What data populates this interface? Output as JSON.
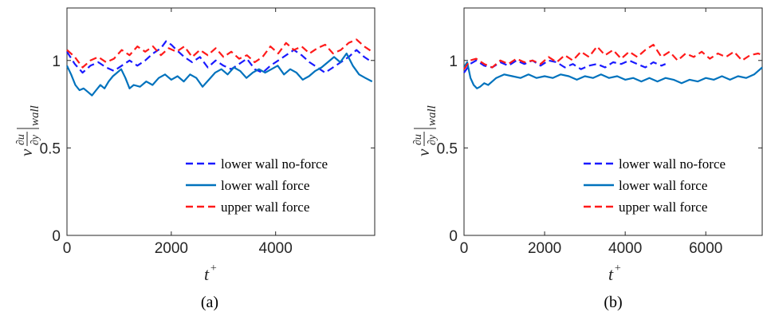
{
  "colors": {
    "no_force": "#1a1aff",
    "lower_force": "#0072bd",
    "upper_force": "#ff1a1a",
    "axis": "#262626"
  },
  "chart_data": [
    {
      "type": "line",
      "panel": "(a)",
      "xlabel": "t+",
      "ylabel": "ν ∂u/∂y |wall",
      "xlim": [
        0,
        5900
      ],
      "ylim": [
        0,
        1.3
      ],
      "xticks": [
        "0",
        "2000",
        "4000"
      ],
      "yticks": [
        "0",
        "0.5",
        "1"
      ],
      "legend_position": "bottom-right",
      "grid": false,
      "series": [
        {
          "name": "lower wall no-force",
          "style": "dashed",
          "color": "#1a1aff",
          "x": [
            0,
            150,
            300,
            450,
            600,
            750,
            900,
            1050,
            1200,
            1350,
            1500,
            1650,
            1800,
            1900,
            2000,
            2100,
            2250,
            2400,
            2550,
            2700,
            2850,
            3000,
            3150,
            3300,
            3450,
            3600,
            3750,
            3900,
            4050,
            4200,
            4350,
            4500,
            4650,
            4800,
            4950,
            5100,
            5250,
            5400,
            5550,
            5700,
            5850
          ],
          "y": [
            1.05,
            0.98,
            0.93,
            0.97,
            0.99,
            0.96,
            0.94,
            0.97,
            1.0,
            0.97,
            1.0,
            1.04,
            1.07,
            1.11,
            1.09,
            1.06,
            1.02,
            0.99,
            1.02,
            0.96,
            1.0,
            0.97,
            0.95,
            0.98,
            1.01,
            0.95,
            0.93,
            0.97,
            1.0,
            1.03,
            1.06,
            1.03,
            0.99,
            0.96,
            0.93,
            0.96,
            0.99,
            1.02,
            1.06,
            1.02,
            0.99
          ]
        },
        {
          "name": "lower wall force",
          "style": "solid",
          "color": "#0072bd",
          "x": [
            0,
            80,
            160,
            240,
            320,
            400,
            480,
            560,
            640,
            720,
            800,
            880,
            960,
            1040,
            1120,
            1200,
            1280,
            1400,
            1520,
            1640,
            1760,
            1880,
            2000,
            2120,
            2240,
            2360,
            2480,
            2600,
            2720,
            2840,
            2960,
            3080,
            3200,
            3320,
            3440,
            3560,
            3680,
            3800,
            3920,
            4040,
            4160,
            4280,
            4400,
            4520,
            4640,
            4760,
            4880,
            5000,
            5120,
            5240,
            5360,
            5480,
            5600,
            5720,
            5850
          ],
          "y": [
            0.97,
            0.92,
            0.86,
            0.83,
            0.84,
            0.82,
            0.8,
            0.83,
            0.86,
            0.84,
            0.88,
            0.91,
            0.93,
            0.95,
            0.9,
            0.84,
            0.86,
            0.85,
            0.88,
            0.86,
            0.9,
            0.92,
            0.89,
            0.91,
            0.88,
            0.92,
            0.9,
            0.85,
            0.89,
            0.93,
            0.95,
            0.92,
            0.96,
            0.94,
            0.9,
            0.93,
            0.95,
            0.93,
            0.95,
            0.97,
            0.92,
            0.95,
            0.93,
            0.89,
            0.91,
            0.94,
            0.96,
            0.99,
            1.02,
            0.99,
            1.04,
            0.97,
            0.92,
            0.9,
            0.88
          ]
        },
        {
          "name": "upper wall force",
          "style": "dashed",
          "color": "#ff1a1a",
          "x": [
            0,
            150,
            300,
            450,
            600,
            750,
            900,
            1050,
            1200,
            1350,
            1500,
            1650,
            1800,
            1950,
            2100,
            2250,
            2400,
            2550,
            2700,
            2850,
            3000,
            3150,
            3300,
            3450,
            3600,
            3750,
            3900,
            4050,
            4200,
            4350,
            4500,
            4650,
            4800,
            4950,
            5100,
            5250,
            5400,
            5550,
            5700,
            5850
          ],
          "y": [
            1.06,
            1.02,
            0.96,
            1.0,
            1.02,
            0.99,
            1.01,
            1.06,
            1.03,
            1.08,
            1.05,
            1.08,
            1.03,
            1.07,
            1.05,
            1.08,
            1.02,
            1.06,
            1.03,
            1.07,
            1.02,
            1.05,
            1.01,
            1.03,
            0.99,
            1.02,
            1.08,
            1.04,
            1.1,
            1.06,
            1.08,
            1.04,
            1.07,
            1.09,
            1.04,
            1.06,
            1.1,
            1.12,
            1.08,
            1.05
          ]
        }
      ]
    },
    {
      "type": "line",
      "panel": "(b)",
      "xlabel": "t+",
      "ylabel": "ν ∂u/∂y |wall",
      "xlim": [
        0,
        7400
      ],
      "ylim": [
        0,
        1.3
      ],
      "xticks": [
        "0",
        "2000",
        "4000",
        "6000"
      ],
      "yticks": [
        "0",
        "0.5",
        "1"
      ],
      "legend_position": "bottom-right",
      "grid": false,
      "series": [
        {
          "name": "lower wall no-force",
          "style": "dashed",
          "color": "#1a1aff",
          "x": [
            0,
            150,
            300,
            500,
            700,
            900,
            1100,
            1300,
            1500,
            1700,
            1900,
            2100,
            2300,
            2500,
            2700,
            2900,
            3100,
            3300,
            3500,
            3700,
            3900,
            4100,
            4300,
            4500,
            4700,
            4900,
            5000
          ],
          "y": [
            0.93,
            0.98,
            1.0,
            0.97,
            0.96,
            0.99,
            0.97,
            1.0,
            0.98,
            1.0,
            0.97,
            1.0,
            0.99,
            0.96,
            0.98,
            0.95,
            0.97,
            0.98,
            0.96,
            0.99,
            0.98,
            1.0,
            0.98,
            0.96,
            0.99,
            0.97,
            0.98
          ]
        },
        {
          "name": "lower wall force",
          "style": "solid",
          "color": "#0072bd",
          "x": [
            0,
            80,
            160,
            240,
            320,
            400,
            500,
            600,
            700,
            800,
            1000,
            1200,
            1400,
            1600,
            1800,
            2000,
            2200,
            2400,
            2600,
            2800,
            3000,
            3200,
            3400,
            3600,
            3800,
            4000,
            4200,
            4400,
            4600,
            4800,
            5000,
            5200,
            5400,
            5600,
            5800,
            6000,
            6200,
            6400,
            6600,
            6800,
            7000,
            7200,
            7400
          ],
          "y": [
            0.96,
            0.99,
            0.9,
            0.86,
            0.84,
            0.85,
            0.87,
            0.86,
            0.88,
            0.9,
            0.92,
            0.91,
            0.9,
            0.92,
            0.9,
            0.91,
            0.9,
            0.92,
            0.91,
            0.89,
            0.91,
            0.9,
            0.92,
            0.9,
            0.91,
            0.89,
            0.9,
            0.88,
            0.9,
            0.88,
            0.9,
            0.89,
            0.87,
            0.89,
            0.88,
            0.9,
            0.89,
            0.91,
            0.89,
            0.91,
            0.9,
            0.92,
            0.96
          ]
        },
        {
          "name": "upper wall force",
          "style": "dashed",
          "color": "#ff1a1a",
          "x": [
            0,
            150,
            300,
            500,
            700,
            900,
            1100,
            1300,
            1500,
            1700,
            1900,
            2100,
            2300,
            2500,
            2700,
            2900,
            3100,
            3300,
            3500,
            3700,
            3900,
            4100,
            4300,
            4500,
            4700,
            4900,
            5100,
            5300,
            5500,
            5700,
            5900,
            6100,
            6300,
            6500,
            6700,
            6900,
            7100,
            7300,
            7400
          ],
          "y": [
            0.95,
            1.0,
            1.01,
            0.98,
            0.96,
            1.0,
            0.98,
            1.01,
            0.99,
            1.0,
            0.98,
            1.02,
            0.99,
            1.03,
            1.0,
            1.05,
            1.02,
            1.08,
            1.03,
            1.06,
            1.01,
            1.05,
            1.02,
            1.06,
            1.09,
            1.02,
            1.05,
            1.0,
            1.04,
            1.02,
            1.05,
            1.01,
            1.04,
            1.02,
            1.05,
            1.0,
            1.03,
            1.04,
            1.03
          ]
        }
      ]
    }
  ]
}
